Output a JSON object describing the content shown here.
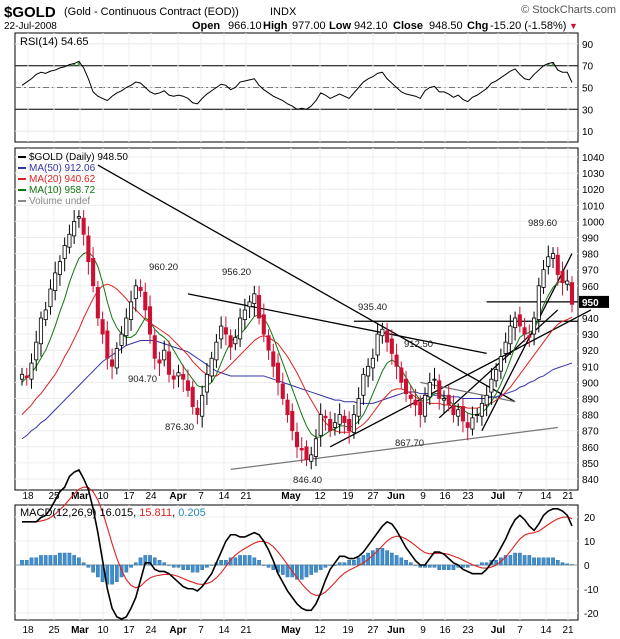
{
  "header": {
    "symbol": "$GOLD",
    "name": "(Gold - Continuous Contract (EOD))",
    "exchange": "INDX",
    "brand": "© StockCharts.com",
    "date": "22-Jul-2008",
    "open_label": "Open",
    "open": "966.10",
    "high_label": "High",
    "high": "977.00",
    "low_label": "Low",
    "low": "942.10",
    "close_label": "Close",
    "close": "948.50",
    "chg_label": "Chg",
    "chg": "-15.20 (-1.58%)"
  },
  "colors": {
    "up": "#ffffff",
    "down": "#cc1133",
    "ma50": "#3333aa",
    "ma20": "#dd2222",
    "ma10": "#117711",
    "macd": "#000000",
    "signal": "#dd2222",
    "hist": "#3f8fcf"
  },
  "rsi": {
    "label": "RSI(14) 54.65",
    "ticks": [
      "90",
      "70",
      "50",
      "30",
      "10"
    ]
  },
  "price": {
    "legend": [
      {
        "text": "$GOLD (Daily) 948.50",
        "color": "#000000"
      },
      {
        "text": "MA(50) 912.06",
        "color": "#3333aa"
      },
      {
        "text": "MA(20) 940.62",
        "color": "#dd2222"
      },
      {
        "text": "MA(10) 958.72",
        "color": "#117711"
      },
      {
        "text": "Volume undef",
        "color": "#888888"
      }
    ],
    "ticks": [
      "1040",
      "1030",
      "1020",
      "1010",
      "1000",
      "990",
      "980",
      "970",
      "960",
      "950",
      "940",
      "930",
      "920",
      "910",
      "900",
      "890",
      "880",
      "870",
      "860",
      "850",
      "840"
    ],
    "annotations": [
      "904.70",
      "960.20",
      "956.20",
      "876.30",
      "935.40",
      "912.50",
      "867.70",
      "846.40",
      "989.60"
    ],
    "last_price": "950"
  },
  "macd": {
    "label": "MACD(12,26,9) 16.015, 15.811, 0.205",
    "label_parts": [
      "MACD(12,26,9) 16.015, ",
      "15.811",
      ", ",
      "0.205"
    ],
    "ticks": [
      "20",
      "10",
      "0",
      "-10",
      "-20"
    ]
  },
  "xaxis": [
    "18",
    "25",
    "Mar",
    "10",
    "17",
    "24",
    "Apr",
    "7",
    "14",
    "21",
    "May",
    "12",
    "19",
    "27",
    "Jun",
    "9",
    "16",
    "23",
    "Jul",
    "7",
    "14",
    "21"
  ],
  "chart_data": {
    "type": "candlestick",
    "title": "$GOLD (Gold - Continuous Contract (EOD)) INDX",
    "ylim": [
      840,
      1040
    ],
    "x_labels": [
      "18",
      "25",
      "Mar",
      "10",
      "17",
      "24",
      "Apr",
      "7",
      "14",
      "21",
      "May",
      "12",
      "19",
      "27",
      "Jun",
      "9",
      "16",
      "23",
      "Jul",
      "7",
      "14",
      "21"
    ],
    "key_levels": [
      {
        "label": "904.70",
        "value": 904.7
      },
      {
        "label": "960.20",
        "value": 960.2
      },
      {
        "label": "956.20",
        "value": 956.2
      },
      {
        "label": "876.30",
        "value": 876.3
      },
      {
        "label": "935.40",
        "value": 935.4
      },
      {
        "label": "912.50",
        "value": 912.5
      },
      {
        "label": "867.70",
        "value": 867.7
      },
      {
        "label": "846.40",
        "value": 846.4
      },
      {
        "label": "989.60",
        "value": 989.6
      }
    ],
    "close_series": [
      905,
      903,
      912,
      925,
      940,
      945,
      958,
      968,
      975,
      985,
      992,
      1000,
      1003,
      992,
      975,
      960,
      940,
      930,
      915,
      910,
      921,
      930,
      940,
      950,
      960,
      957,
      945,
      930,
      915,
      912,
      920,
      905,
      902,
      906,
      902,
      895,
      885,
      880,
      892,
      905,
      915,
      925,
      935,
      930,
      922,
      928,
      940,
      945,
      950,
      955,
      940,
      930,
      920,
      910,
      900,
      890,
      880,
      870,
      860,
      858,
      852,
      855,
      865,
      880,
      878,
      870,
      875,
      880,
      875,
      870,
      880,
      890,
      905,
      910,
      915,
      930,
      933,
      925,
      918,
      910,
      900,
      893,
      890,
      886,
      880,
      892,
      900,
      902,
      890,
      890,
      886,
      880,
      883,
      876,
      872,
      878,
      880,
      887,
      892,
      902,
      908,
      916,
      925,
      935,
      940,
      935,
      930,
      928,
      940,
      960,
      970,
      978,
      980,
      967,
      962,
      963,
      948.5
    ],
    "ma10": [
      900,
      903,
      906,
      910,
      915,
      920,
      927,
      935,
      944,
      952,
      962,
      970,
      977,
      980,
      981,
      978,
      972,
      962,
      950,
      940,
      934,
      930,
      928,
      928,
      930,
      935,
      940,
      938,
      933,
      930,
      928,
      925,
      920,
      915,
      910,
      906,
      902,
      898,
      897,
      898,
      900,
      905,
      912,
      919,
      925,
      928,
      930,
      933,
      937,
      941,
      942,
      940,
      935,
      928,
      920,
      912,
      904,
      896,
      888,
      880,
      873,
      868,
      866,
      866,
      868,
      870,
      871,
      873,
      873,
      872,
      873,
      876,
      880,
      886,
      893,
      900,
      907,
      912,
      914,
      912,
      908,
      903,
      898,
      893,
      889,
      888,
      890,
      893,
      893,
      891,
      889,
      886,
      885,
      883,
      881,
      880,
      880,
      881,
      884,
      888,
      893,
      899,
      906,
      914,
      922,
      928,
      930,
      931,
      933,
      940,
      948,
      954,
      959,
      962,
      963,
      962,
      958.72
    ],
    "ma20": [
      880,
      883,
      886,
      890,
      893,
      897,
      901,
      905,
      910,
      916,
      921,
      927,
      933,
      940,
      946,
      952,
      957,
      960,
      961,
      960,
      958,
      955,
      952,
      948,
      945,
      942,
      939,
      937,
      935,
      933,
      931,
      929,
      926,
      923,
      920,
      917,
      913,
      910,
      907,
      905,
      904,
      904,
      906,
      908,
      911,
      914,
      917,
      920,
      923,
      926,
      928,
      929,
      928,
      926,
      924,
      920,
      916,
      911,
      906,
      900,
      894,
      889,
      884,
      879,
      875,
      872,
      870,
      869,
      869,
      869,
      870,
      872,
      874,
      877,
      881,
      885,
      889,
      892,
      895,
      896,
      896,
      895,
      893,
      891,
      889,
      888,
      887,
      887,
      887,
      886,
      886,
      885,
      885,
      885,
      884,
      884,
      884,
      885,
      886,
      887,
      889,
      891,
      894,
      897,
      901,
      905,
      909,
      913,
      917,
      921,
      925,
      929,
      933,
      936,
      938,
      939,
      940.62
    ],
    "ma50": [
      865,
      867,
      870,
      872,
      875,
      877,
      880,
      883,
      886,
      889,
      892,
      895,
      898,
      901,
      904,
      907,
      910,
      913,
      915,
      917,
      919,
      921,
      923,
      924,
      925,
      926,
      926,
      926,
      926,
      925,
      924,
      923,
      922,
      921,
      920,
      919,
      917,
      915,
      913,
      911,
      909,
      907,
      906,
      905,
      904,
      904,
      904,
      904,
      904,
      904,
      904,
      904,
      903,
      902,
      901,
      900,
      899,
      898,
      897,
      896,
      895,
      894,
      893,
      892,
      891,
      890,
      889,
      889,
      888,
      888,
      888,
      887,
      887,
      887,
      887,
      888,
      889,
      890,
      891,
      892,
      893,
      894,
      894,
      894,
      893,
      893,
      893,
      892,
      892,
      892,
      891,
      891,
      891,
      890,
      890,
      890,
      890,
      890,
      890,
      891,
      891,
      892,
      893,
      894,
      895,
      897,
      898,
      900,
      901,
      903,
      904,
      906,
      908,
      909,
      910,
      911,
      912.06
    ],
    "rsi": [
      52,
      55,
      58,
      62,
      64,
      63,
      65,
      66,
      68,
      69,
      71,
      72,
      74,
      68,
      58,
      46,
      42,
      40,
      38,
      42,
      45,
      47,
      50,
      52,
      55,
      54,
      50,
      46,
      44,
      45,
      47,
      43,
      42,
      43,
      42,
      40,
      36,
      35,
      40,
      44,
      47,
      50,
      53,
      52,
      48,
      50,
      55,
      56,
      57,
      58,
      52,
      48,
      45,
      42,
      40,
      38,
      35,
      33,
      30,
      31,
      30,
      33,
      38,
      45,
      43,
      40,
      42,
      44,
      42,
      40,
      45,
      50,
      55,
      58,
      60,
      63,
      64,
      58,
      54,
      50,
      46,
      44,
      43,
      42,
      40,
      47,
      50,
      51,
      46,
      46,
      44,
      41,
      43,
      39,
      37,
      41,
      43,
      46,
      49,
      54,
      56,
      59,
      62,
      65,
      67,
      62,
      58,
      57,
      62,
      66,
      70,
      72,
      73,
      66,
      64,
      64,
      54.65
    ],
    "macd_hist": [
      2,
      2,
      3,
      3,
      4,
      4,
      4,
      4,
      5,
      5,
      5,
      4,
      3,
      1,
      -1,
      -3,
      -5,
      -7,
      -8,
      -8,
      -7,
      -5,
      -3,
      -1,
      1,
      3,
      4,
      4,
      3,
      2,
      1,
      0,
      -1,
      -1,
      -2,
      -2,
      -3,
      -3,
      -2,
      -1,
      0,
      1,
      2,
      2,
      3,
      3,
      4,
      4,
      4,
      3,
      2,
      0,
      -1,
      -2,
      -3,
      -4,
      -5,
      -5,
      -6,
      -6,
      -5,
      -4,
      -3,
      -2,
      -1,
      0,
      0,
      1,
      1,
      2,
      2,
      3,
      4,
      5,
      6,
      7,
      7,
      6,
      5,
      4,
      3,
      2,
      1,
      0,
      -1,
      -1,
      -1,
      -1,
      -2,
      -2,
      -2,
      -2,
      -1,
      -1,
      -1,
      0,
      0,
      1,
      1,
      2,
      2,
      3,
      4,
      4,
      5,
      5,
      4,
      4,
      3,
      3,
      3,
      3,
      3,
      2,
      1,
      0.5,
      0.205
    ]
  }
}
